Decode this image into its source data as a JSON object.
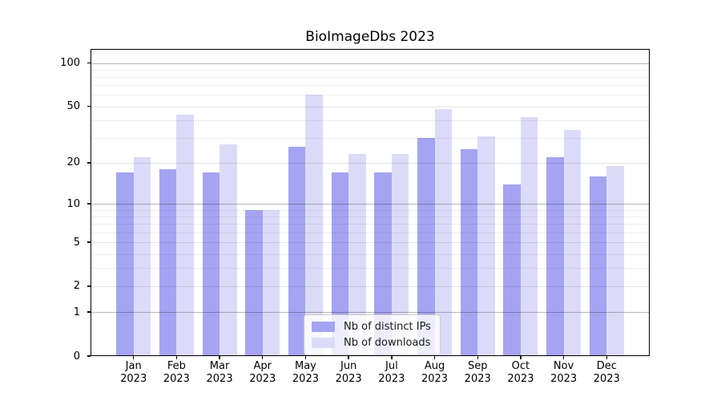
{
  "title": "BioImageDbs 2023",
  "colors": {
    "ips_bar": "#a4a4f2",
    "downloads_bar": "#dbdbf9",
    "axis": "#000000",
    "grid_major": "#b5b5b5",
    "grid_minor": "#ededed"
  },
  "chart_data": {
    "type": "bar",
    "title": "BioImageDbs 2023",
    "categories": [
      "Jan 2023",
      "Feb 2023",
      "Mar 2023",
      "Apr 2023",
      "May 2023",
      "Jun 2023",
      "Jul 2023",
      "Aug 2023",
      "Sep 2023",
      "Oct 2023",
      "Nov 2023",
      "Dec 2023"
    ],
    "series": [
      {
        "name": "Nb of distinct IPs",
        "color": "#a4a4f2",
        "values": [
          17,
          18,
          17,
          9,
          26,
          17,
          17,
          30,
          25,
          14,
          22,
          16
        ]
      },
      {
        "name": "Nb of downloads",
        "color": "#dbdbf9",
        "values": [
          22,
          44,
          27,
          9,
          60,
          23,
          23,
          48,
          31,
          42,
          34,
          19
        ]
      }
    ],
    "xlabel": "",
    "ylabel": "",
    "yscale": "symlog-ln(1+v)",
    "ylim": [
      0,
      125
    ],
    "yticks": [
      0,
      1,
      2,
      5,
      10,
      20,
      50,
      100
    ],
    "grid": true,
    "gridline_values_major": [
      1,
      10,
      100
    ],
    "gridline_values_labeled_minor": [
      2,
      5,
      20,
      50
    ],
    "gridline_values_faint_minor": [
      3,
      4,
      6,
      7,
      8,
      9,
      30,
      40,
      60,
      70,
      80,
      90
    ],
    "legend_position": "lower center",
    "legend_entries": [
      "Nb of distinct IPs",
      "Nb of downloads"
    ]
  }
}
